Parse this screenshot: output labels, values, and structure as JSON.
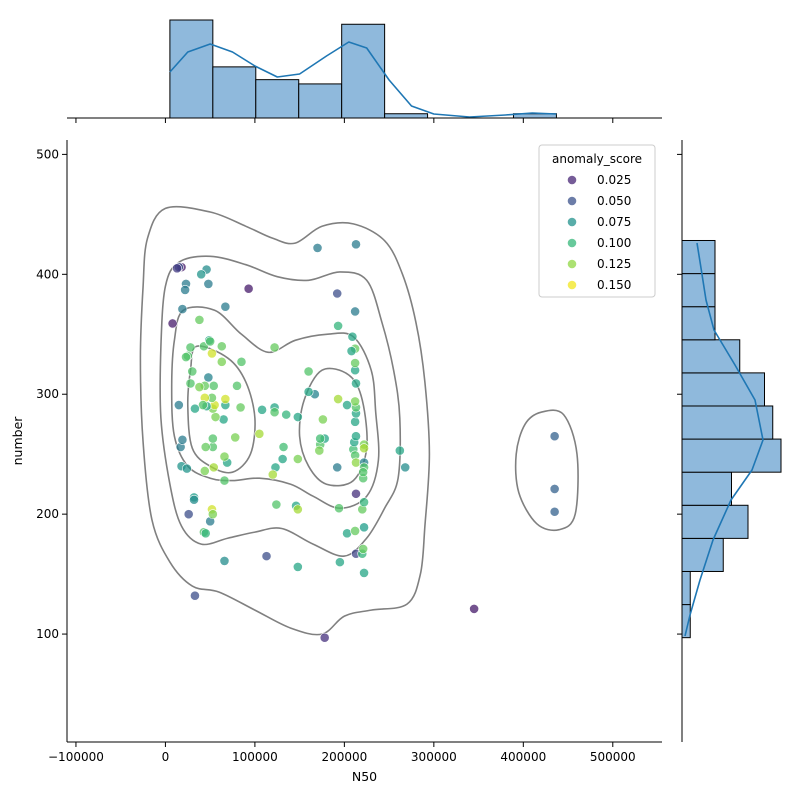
{
  "chart_data": {
    "type": "scatter",
    "title": "",
    "xlabel": "N50",
    "ylabel": "number",
    "xlim": [
      -110000,
      555000
    ],
    "ylim": [
      10,
      512
    ],
    "grid": false,
    "xticks": [
      -100000,
      0,
      100000,
      200000,
      300000,
      400000,
      500000
    ],
    "xtick_labels": [
      "−100000",
      "0",
      "100000",
      "200000",
      "300000",
      "400000",
      "500000"
    ],
    "yticks": [
      100,
      200,
      300,
      400,
      500
    ],
    "ytick_labels": [
      "100",
      "200",
      "300",
      "400",
      "500"
    ],
    "legend": {
      "title": "anomaly_score",
      "placement": "top-right",
      "entries": [
        {
          "label": "0.025",
          "color": "#482575"
        },
        {
          "label": "0.050",
          "color": "#3b528b"
        },
        {
          "label": "0.075",
          "color": "#21918c"
        },
        {
          "label": "0.100",
          "color": "#35b779"
        },
        {
          "label": "0.125",
          "color": "#90d743"
        },
        {
          "label": "0.150",
          "color": "#f2e51d"
        }
      ]
    },
    "marginal_x_histogram": {
      "bins": [
        5000,
        53000,
        101000,
        149000,
        197000,
        245000,
        293000,
        341000,
        389000,
        437000
      ],
      "counts": [
        23,
        12,
        9,
        8,
        22,
        1,
        0,
        0,
        1
      ],
      "color": "#8fb9dc"
    },
    "marginal_y_histogram": {
      "bins": [
        97,
        124.6,
        152.2,
        179.8,
        207.4,
        235,
        262.6,
        290.2,
        317.8,
        345.4,
        373,
        400.6,
        428.2
      ],
      "counts": [
        1,
        1,
        5,
        8,
        6,
        12,
        11,
        10,
        7,
        4,
        4,
        4
      ],
      "color": "#8fb9dc"
    },
    "kde_color": "#1f77b4",
    "contour_color": "#808080",
    "points": [
      [
        18000,
        406,
        0.025
      ],
      [
        8000,
        359,
        0.025
      ],
      [
        93000,
        388,
        0.025
      ],
      [
        345000,
        121,
        0.025
      ],
      [
        178000,
        97,
        0.035
      ],
      [
        213000,
        217,
        0.035
      ],
      [
        213000,
        167,
        0.045
      ],
      [
        113000,
        165,
        0.05
      ],
      [
        33000,
        132,
        0.05
      ],
      [
        26000,
        200,
        0.05
      ],
      [
        192000,
        384,
        0.05
      ],
      [
        15000,
        406,
        0.05
      ],
      [
        435000,
        265,
        0.06
      ],
      [
        435000,
        221,
        0.06
      ],
      [
        435000,
        202,
        0.06
      ],
      [
        170000,
        422,
        0.075
      ],
      [
        213000,
        425,
        0.075
      ],
      [
        212000,
        369,
        0.075
      ],
      [
        23000,
        392,
        0.075
      ],
      [
        22000,
        387,
        0.075
      ],
      [
        46000,
        404,
        0.085
      ],
      [
        40000,
        400,
        0.09
      ],
      [
        48000,
        392,
        0.075
      ],
      [
        67000,
        373,
        0.075
      ],
      [
        19000,
        371,
        0.075
      ],
      [
        15000,
        291,
        0.075
      ],
      [
        17000,
        256,
        0.075
      ],
      [
        19000,
        262,
        0.075
      ],
      [
        18000,
        240,
        0.09
      ],
      [
        24000,
        238,
        0.09
      ],
      [
        32000,
        214,
        0.095
      ],
      [
        32000,
        212,
        0.085
      ],
      [
        50000,
        194,
        0.075
      ],
      [
        66000,
        161,
        0.085
      ],
      [
        148000,
        156,
        0.1
      ],
      [
        195000,
        160,
        0.1
      ],
      [
        222000,
        151,
        0.1
      ],
      [
        220000,
        167,
        0.11
      ],
      [
        221000,
        171,
        0.125
      ],
      [
        203000,
        184,
        0.1
      ],
      [
        212000,
        186,
        0.125
      ],
      [
        222000,
        189,
        0.095
      ],
      [
        220000,
        204,
        0.125
      ],
      [
        222000,
        210,
        0.11
      ],
      [
        194000,
        205,
        0.12
      ],
      [
        146000,
        207,
        0.1
      ],
      [
        148000,
        204,
        0.14
      ],
      [
        124000,
        208,
        0.12
      ],
      [
        123000,
        239,
        0.1
      ],
      [
        131000,
        246,
        0.1
      ],
      [
        132000,
        256,
        0.115
      ],
      [
        148000,
        246,
        0.13
      ],
      [
        173000,
        258,
        0.12
      ],
      [
        172000,
        253,
        0.13
      ],
      [
        178000,
        263,
        0.1
      ],
      [
        192000,
        239,
        0.075
      ],
      [
        210000,
        254,
        0.115
      ],
      [
        212000,
        249,
        0.12
      ],
      [
        213000,
        243,
        0.135
      ],
      [
        222000,
        243,
        0.08
      ],
      [
        222000,
        239,
        0.12
      ],
      [
        221000,
        230,
        0.12
      ],
      [
        222000,
        258,
        0.13
      ],
      [
        222000,
        255,
        0.14
      ],
      [
        221000,
        235,
        0.12
      ],
      [
        211000,
        260,
        0.1
      ],
      [
        213000,
        265,
        0.1
      ],
      [
        212000,
        277,
        0.1
      ],
      [
        213000,
        284,
        0.1
      ],
      [
        213000,
        289,
        0.12
      ],
      [
        212000,
        294,
        0.13
      ],
      [
        203000,
        291,
        0.1
      ],
      [
        193000,
        296,
        0.14
      ],
      [
        213000,
        309,
        0.1
      ],
      [
        212000,
        320,
        0.1
      ],
      [
        212000,
        326,
        0.125
      ],
      [
        212000,
        338,
        0.125
      ],
      [
        208000,
        336,
        0.1
      ],
      [
        209000,
        348,
        0.1
      ],
      [
        193000,
        357,
        0.11
      ],
      [
        176000,
        279,
        0.13
      ],
      [
        173000,
        263,
        0.115
      ],
      [
        167000,
        300,
        0.08
      ],
      [
        160000,
        302,
        0.1
      ],
      [
        160000,
        319,
        0.12
      ],
      [
        148000,
        281,
        0.1
      ],
      [
        135000,
        283,
        0.11
      ],
      [
        122000,
        289,
        0.1
      ],
      [
        122000,
        285,
        0.12
      ],
      [
        108000,
        287,
        0.1
      ],
      [
        105000,
        267,
        0.14
      ],
      [
        120000,
        233,
        0.14
      ],
      [
        122000,
        339,
        0.125
      ],
      [
        262000,
        253,
        0.1
      ],
      [
        268000,
        239,
        0.085
      ],
      [
        13000,
        405,
        0.04
      ],
      [
        85000,
        327,
        0.12
      ],
      [
        80000,
        307,
        0.12
      ],
      [
        84000,
        289,
        0.125
      ],
      [
        78000,
        264,
        0.13
      ],
      [
        69000,
        243,
        0.1
      ],
      [
        66000,
        248,
        0.13
      ],
      [
        66000,
        228,
        0.12
      ],
      [
        54000,
        239,
        0.14
      ],
      [
        53000,
        256,
        0.12
      ],
      [
        53000,
        263,
        0.12
      ],
      [
        65000,
        279,
        0.1
      ],
      [
        67000,
        291,
        0.1
      ],
      [
        67000,
        296,
        0.15
      ],
      [
        56000,
        281,
        0.13
      ],
      [
        53000,
        288,
        0.13
      ],
      [
        55000,
        291,
        0.15
      ],
      [
        54000,
        307,
        0.12
      ],
      [
        52000,
        297,
        0.125
      ],
      [
        48000,
        314,
        0.08
      ],
      [
        46000,
        290,
        0.1
      ],
      [
        44000,
        307,
        0.125
      ],
      [
        44000,
        297,
        0.15
      ],
      [
        42000,
        291,
        0.12
      ],
      [
        38000,
        306,
        0.13
      ],
      [
        33000,
        288,
        0.1
      ],
      [
        28000,
        309,
        0.12
      ],
      [
        30000,
        319,
        0.12
      ],
      [
        25000,
        332,
        0.12
      ],
      [
        28000,
        339,
        0.12
      ],
      [
        43000,
        340,
        0.12
      ],
      [
        49000,
        345,
        0.1
      ],
      [
        52000,
        334,
        0.15
      ],
      [
        63000,
        340,
        0.125
      ],
      [
        63000,
        327,
        0.13
      ],
      [
        38000,
        362,
        0.125
      ],
      [
        50000,
        344,
        0.12
      ],
      [
        45000,
        256,
        0.125
      ],
      [
        44000,
        236,
        0.13
      ],
      [
        23000,
        331,
        0.12
      ],
      [
        43000,
        185,
        0.12
      ],
      [
        52000,
        204,
        0.15
      ],
      [
        53000,
        200,
        0.13
      ],
      [
        45000,
        184,
        0.11
      ]
    ]
  }
}
